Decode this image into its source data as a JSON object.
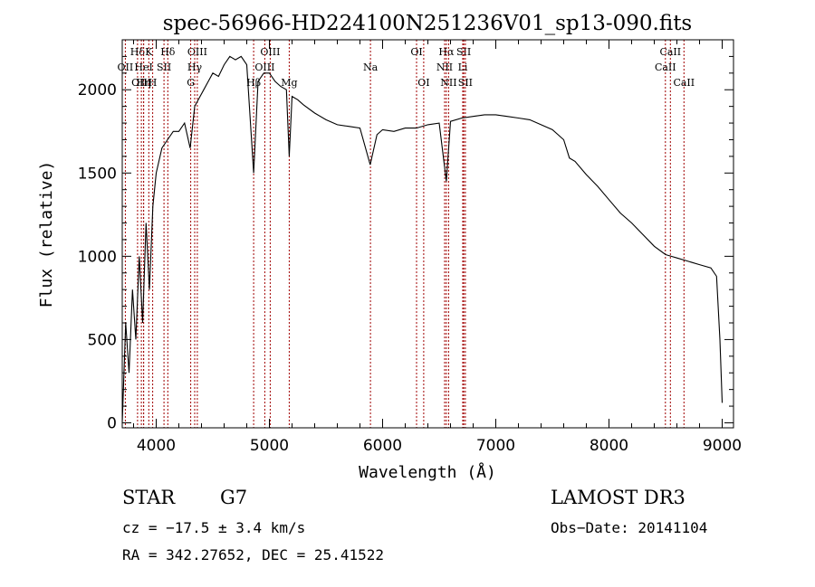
{
  "chart_data": {
    "type": "line",
    "title": "spec-56966-HD224100N251236V01_sp13-090.fits",
    "xlabel": "Wavelength (Å)",
    "ylabel": "Flux (relative)",
    "xlim": [
      3700,
      9100
    ],
    "ylim": [
      -30,
      2300
    ],
    "x_ticks": [
      4000,
      5000,
      6000,
      7000,
      8000,
      9000
    ],
    "y_ticks": [
      0,
      500,
      1000,
      1500,
      2000
    ],
    "series": [
      {
        "name": "flux",
        "x": [
          3700,
          3730,
          3760,
          3790,
          3820,
          3850,
          3880,
          3910,
          3940,
          3970,
          4000,
          4050,
          4100,
          4150,
          4200,
          4250,
          4300,
          4340,
          4380,
          4420,
          4460,
          4500,
          4550,
          4600,
          4650,
          4700,
          4750,
          4800,
          4861,
          4900,
          4950,
          5000,
          5050,
          5100,
          5150,
          5175,
          5200,
          5250,
          5300,
          5400,
          5500,
          5600,
          5700,
          5800,
          5890,
          5950,
          6000,
          6100,
          6200,
          6300,
          6400,
          6500,
          6563,
          6600,
          6700,
          6800,
          6900,
          7000,
          7100,
          7200,
          7300,
          7400,
          7500,
          7600,
          7650,
          7700,
          7800,
          7900,
          8000,
          8100,
          8200,
          8300,
          8400,
          8500,
          8550,
          8600,
          8700,
          8800,
          8900,
          8950,
          8980,
          9000
        ],
        "y": [
          0,
          600,
          300,
          800,
          500,
          1000,
          600,
          1200,
          800,
          1300,
          1500,
          1650,
          1700,
          1750,
          1750,
          1800,
          1650,
          1900,
          1950,
          2000,
          2050,
          2100,
          2080,
          2150,
          2200,
          2180,
          2200,
          2150,
          1500,
          2050,
          2100,
          2100,
          2050,
          2020,
          2000,
          1600,
          1960,
          1940,
          1910,
          1860,
          1820,
          1790,
          1780,
          1770,
          1550,
          1730,
          1760,
          1750,
          1770,
          1770,
          1790,
          1800,
          1450,
          1810,
          1830,
          1840,
          1850,
          1850,
          1840,
          1830,
          1820,
          1790,
          1760,
          1700,
          1590,
          1570,
          1490,
          1420,
          1340,
          1260,
          1200,
          1130,
          1060,
          1010,
          1000,
          990,
          970,
          950,
          930,
          880,
          500,
          120
        ]
      }
    ],
    "line_markers": [
      {
        "name": "Hδ",
        "wavelength": 3835,
        "row": 1
      },
      {
        "name": "OII",
        "wavelength": 3727,
        "row": 2
      },
      {
        "name": "OIII",
        "wavelength": 3869,
        "row": 3
      },
      {
        "name": "K",
        "wavelength": 3934,
        "row": 1
      },
      {
        "name": "HeI",
        "wavelength": 3889,
        "row": 2
      },
      {
        "name": "Hη",
        "wavelength": 3889,
        "row": 3
      },
      {
        "name": "SII",
        "wavelength": 4069,
        "row": 2
      },
      {
        "name": "H",
        "wavelength": 3969,
        "row": 3
      },
      {
        "name": "Hδ",
        "wavelength": 4102,
        "row": 1
      },
      {
        "name": "OIII",
        "wavelength": 4363,
        "row": 1
      },
      {
        "name": "Hγ",
        "wavelength": 4340,
        "row": 2
      },
      {
        "name": "G",
        "wavelength": 4305,
        "row": 3
      },
      {
        "name": "Hβ",
        "wavelength": 4861,
        "row": 3
      },
      {
        "name": "OIII",
        "wavelength": 5007,
        "row": 1
      },
      {
        "name": "OIII",
        "wavelength": 4959,
        "row": 2
      },
      {
        "name": "Mg",
        "wavelength": 5175,
        "row": 3
      },
      {
        "name": "Na",
        "wavelength": 5893,
        "row": 2
      },
      {
        "name": "OI",
        "wavelength": 6300,
        "row": 1
      },
      {
        "name": "OI",
        "wavelength": 6363,
        "row": 3
      },
      {
        "name": "Hα",
        "wavelength": 6563,
        "row": 1
      },
      {
        "name": "NII",
        "wavelength": 6548,
        "row": 2
      },
      {
        "name": "NII",
        "wavelength": 6583,
        "row": 3
      },
      {
        "name": "SII",
        "wavelength": 6717,
        "row": 1
      },
      {
        "name": "Li",
        "wavelength": 6708,
        "row": 2
      },
      {
        "name": "SII",
        "wavelength": 6731,
        "row": 3
      },
      {
        "name": "CaII",
        "wavelength": 8542,
        "row": 1
      },
      {
        "name": "CaII",
        "wavelength": 8498,
        "row": 2
      },
      {
        "name": "CaII",
        "wavelength": 8662,
        "row": 3
      }
    ]
  },
  "info": {
    "object_class": "STAR",
    "subclass": "G7",
    "survey": "LAMOST DR3",
    "cz": "cz = −17.5 ± 3.4 km/s",
    "obs_date": "Obs−Date: 20141104",
    "coords": "RA = 342.27652, DEC =  25.41522"
  },
  "colors": {
    "line": "#000000",
    "marker": "#a00000",
    "background": "#ffffff"
  }
}
